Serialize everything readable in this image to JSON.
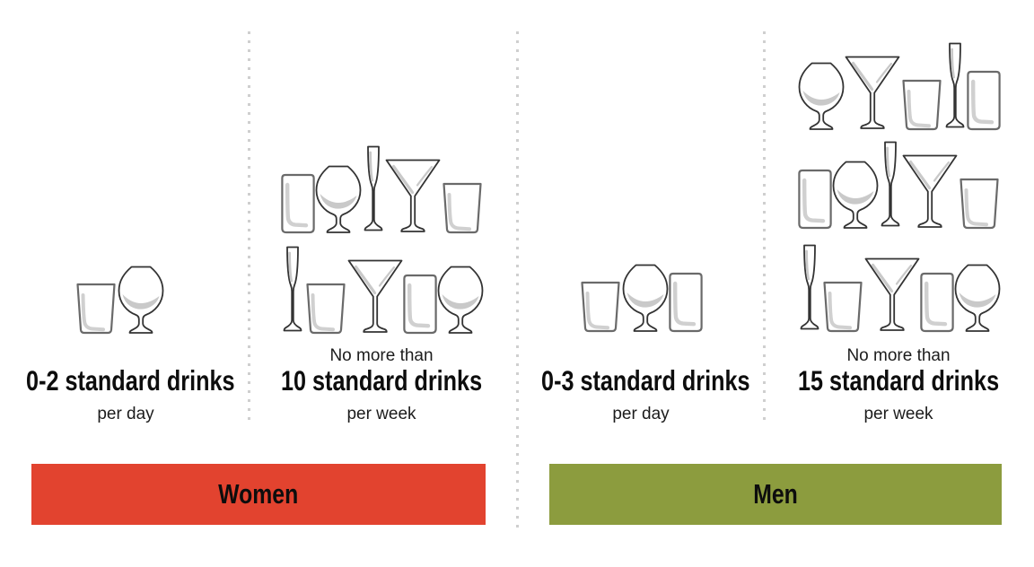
{
  "page": {
    "background_color": "#ffffff",
    "divider_dot_color": "#cfcfcf"
  },
  "sections": {
    "women": {
      "label": "Women",
      "bar_color": "#e2432f",
      "daily": {
        "glasses": [
          "rocks",
          "snifter"
        ],
        "headline": "0-2 standard drinks",
        "subline": "per day"
      },
      "weekly": {
        "glass_rows": [
          [
            "highball",
            "snifter",
            "flute",
            "martini",
            "rocks"
          ],
          [
            "flute",
            "rocks",
            "martini",
            "highball",
            "snifter"
          ]
        ],
        "preline": "No more than",
        "headline": "10 standard drinks",
        "subline": "per week"
      }
    },
    "men": {
      "label": "Men",
      "bar_color": "#8c9c3e",
      "daily": {
        "glasses": [
          "rocks",
          "snifter",
          "highball"
        ],
        "headline": "0-3 standard drinks",
        "subline": "per day"
      },
      "weekly": {
        "glass_rows": [
          [
            "snifter",
            "martini",
            "rocks",
            "flute",
            "highball"
          ],
          [
            "highball",
            "snifter",
            "flute",
            "martini",
            "rocks"
          ],
          [
            "flute",
            "rocks",
            "martini",
            "highball",
            "snifter"
          ]
        ],
        "preline": "No more than",
        "headline": "15 standard drinks",
        "subline": "per week"
      }
    }
  }
}
